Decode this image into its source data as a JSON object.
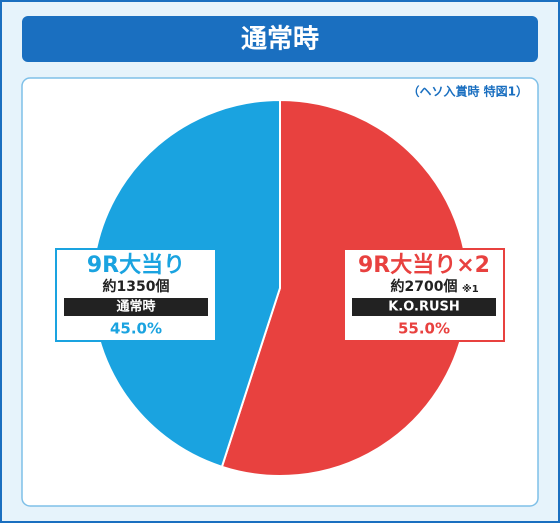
{
  "chart_data": {
    "type": "pie",
    "title": "通常時",
    "subtitle": "（ヘソ入賞時 特図1）",
    "categories": [
      "9R大当り×2",
      "9R大当り"
    ],
    "values": [
      55.0,
      45.0
    ],
    "value_labels": [
      "55.0%",
      "45.0%"
    ],
    "details": [
      "約2700個",
      "約1350個"
    ],
    "footnote_marks": [
      "※1",
      null
    ],
    "modes": [
      "K.O.RUSH",
      "通常時"
    ],
    "colors": [
      "#e8413f",
      "#1aa3e0"
    ]
  }
}
